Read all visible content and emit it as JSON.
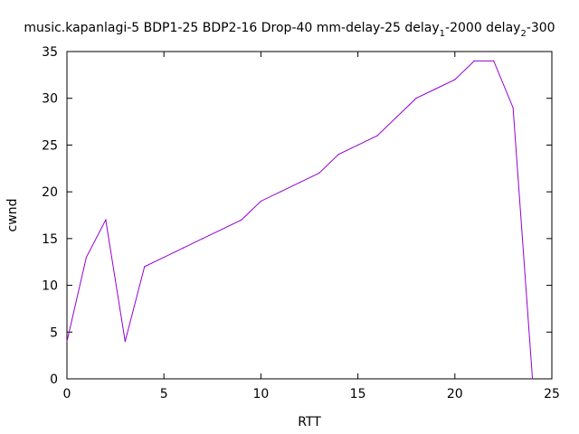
{
  "chart_data": {
    "type": "line",
    "title": {
      "prefix": "music.kapanlagi-5 BDP1-25 BDP2-16 Drop-40 mm-delay-25 delay",
      "sub1": "1",
      "mid": "-2000 delay",
      "sub2": "2",
      "suffix": "-300"
    },
    "xlabel": "RTT",
    "ylabel": "cwnd",
    "xlim": [
      0,
      25
    ],
    "ylim": [
      0,
      35
    ],
    "xticks": [
      "0",
      "5",
      "10",
      "15",
      "20",
      "25"
    ],
    "yticks": [
      "0",
      "5",
      "10",
      "15",
      "20",
      "25",
      "30",
      "35"
    ],
    "grid": false,
    "series": [
      {
        "color": "#9400d3",
        "x": [
          0,
          1,
          2,
          3,
          4,
          5,
          6,
          7,
          8,
          9,
          10,
          11,
          12,
          13,
          14,
          15,
          16,
          17,
          18,
          19,
          20,
          21,
          22,
          23,
          24
        ],
        "y": [
          4,
          13,
          17,
          4,
          12,
          13,
          14,
          15,
          16,
          17,
          19,
          20,
          21,
          22,
          24,
          25,
          26,
          28,
          30,
          31,
          32,
          34,
          34,
          29,
          0
        ]
      }
    ]
  }
}
